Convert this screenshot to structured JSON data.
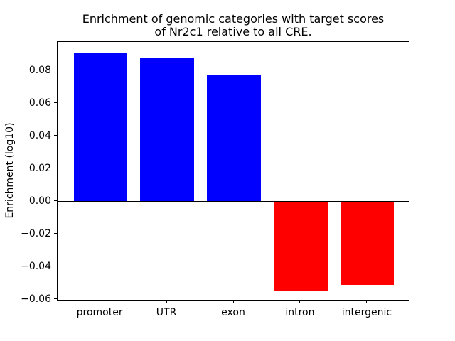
{
  "title": {
    "line1": "Enrichment of genomic categories with target scores",
    "line2": "of Nr2c1 relative to all CRE."
  },
  "chart_data": {
    "type": "bar",
    "title": "Enrichment of genomic categories with target scores\nof Nr2c1 relative to all CRE.",
    "xlabel": "",
    "ylabel": "Enrichment (log10)",
    "categories": [
      "promoter",
      "UTR",
      "exon",
      "intron",
      "intergenic"
    ],
    "values": [
      0.091,
      0.088,
      0.077,
      -0.055,
      -0.051
    ],
    "positive_color": "#0000ff",
    "negative_color": "#ff0000",
    "zero_line_color": "#000000",
    "ylim": [
      -0.061,
      0.0976
    ],
    "yticks": [
      0.08,
      0.06,
      0.04,
      0.02,
      0,
      -0.02,
      -0.04,
      -0.06
    ],
    "ytick_labels": [
      "0.08",
      "0.06",
      "0.04",
      "0.02",
      "0.00",
      "−0.02",
      "−0.04",
      "−0.06"
    ],
    "grid": false,
    "legend_position": "none",
    "bar_width_fraction": 0.8
  }
}
